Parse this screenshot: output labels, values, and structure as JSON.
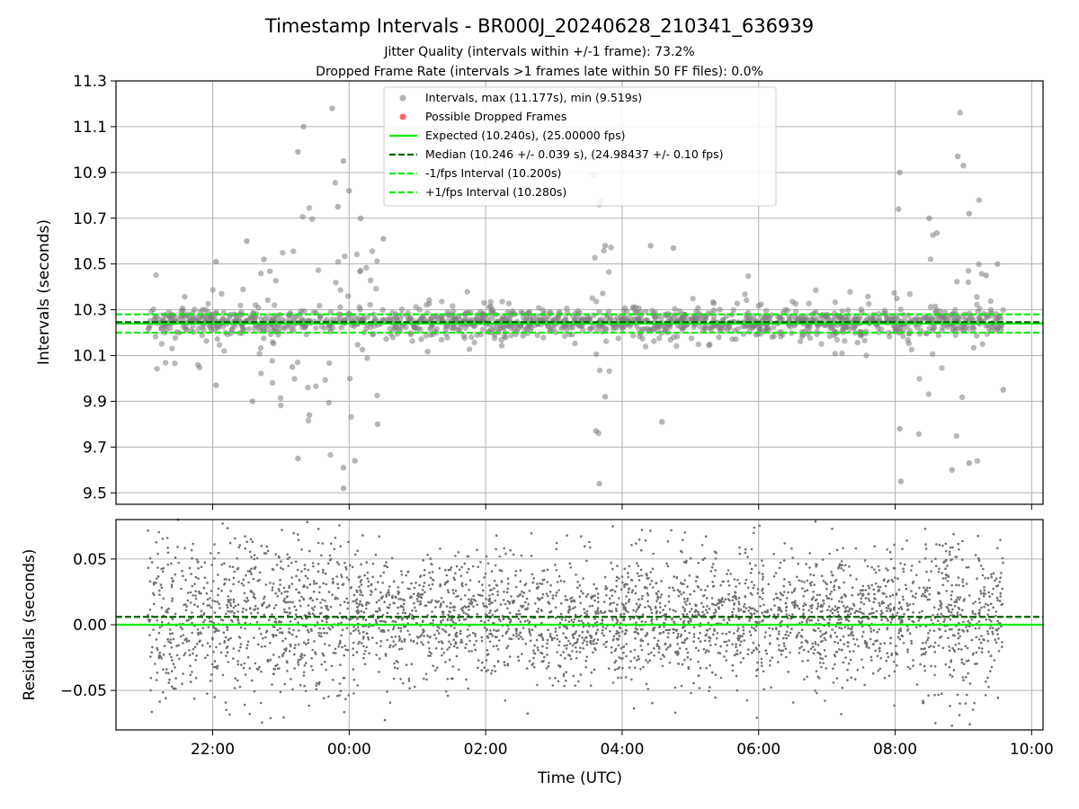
{
  "figure": {
    "title": "Timestamp Intervals - BR000J_20240628_210341_636939",
    "subtitle_1": "Jitter Quality (intervals within +/-1 frame): 73.2%",
    "subtitle_2": "Dropped Frame Rate (intervals >1 frames late within 50 FF files): 0.0%",
    "xlabel": "Time (UTC)"
  },
  "chart_data": [
    {
      "type": "scatter",
      "ylabel": "Intervals (seconds)",
      "xlim": [
        "2024-06-28T20:35",
        "2024-06-29T10:10"
      ],
      "ylim": [
        9.45,
        11.3
      ],
      "yticks": [
        9.5,
        9.7,
        9.9,
        10.1,
        10.3,
        10.5,
        10.7,
        10.9,
        11.1,
        11.3
      ],
      "ytick_labels": [
        "9.5",
        "9.7",
        "9.9",
        "10.1",
        "10.3",
        "10.5",
        "10.7",
        "10.9",
        "11.1",
        "11.3"
      ],
      "xticks": [
        "2024-06-28T22:00",
        "2024-06-29T00:00",
        "2024-06-29T02:00",
        "2024-06-29T04:00",
        "2024-06-29T06:00",
        "2024-06-29T08:00",
        "2024-06-29T10:00"
      ],
      "xtick_labels": [
        "22:00",
        "00:00",
        "02:00",
        "04:00",
        "06:00",
        "08:00",
        "10:00"
      ],
      "grid": true,
      "legend_position": "top-center",
      "legend": [
        {
          "label": "Intervals, max (11.177s), min (9.519s)",
          "kind": "marker",
          "color": "#808080"
        },
        {
          "label": "Possible Dropped Frames",
          "kind": "marker",
          "color": "#ff0000"
        },
        {
          "label": "Expected (10.240s), (25.00000 fps)",
          "kind": "line",
          "color": "#00ee00"
        },
        {
          "label": "Median (10.246 +/- 0.039 s), (24.98437 +/- 0.10 fps)",
          "kind": "dashed",
          "color": "#006400"
        },
        {
          "label": "-1/fps Interval (10.200s)",
          "kind": "dashed",
          "color": "#00ee00"
        },
        {
          "label": "+1/fps Interval (10.280s)",
          "kind": "dashed",
          "color": "#00ee00"
        }
      ],
      "reference_lines": {
        "expected": 10.24,
        "median": 10.246,
        "minus_1fps": 10.2,
        "plus_1fps": 10.28
      },
      "time_range": [
        "2024-06-28T21:03",
        "2024-06-29T09:35"
      ],
      "interval_max": 11.177,
      "interval_min": 9.519,
      "points_sample": [
        [
          "2024-06-28T21:55",
          10.26
        ],
        [
          "2024-06-28T21:58",
          10.24
        ],
        [
          "2024-06-28T22:03",
          10.51
        ],
        [
          "2024-06-28T22:03",
          9.97
        ],
        [
          "2024-06-28T22:30",
          10.6
        ],
        [
          "2024-06-28T22:35",
          9.9
        ],
        [
          "2024-06-28T22:45",
          10.52
        ],
        [
          "2024-06-28T23:10",
          10.05
        ],
        [
          "2024-06-28T23:15",
          9.65
        ],
        [
          "2024-06-28T23:15",
          10.99
        ],
        [
          "2024-06-28T23:20",
          11.1
        ],
        [
          "2024-06-28T23:25",
          9.84
        ],
        [
          "2024-06-28T23:45",
          11.18
        ],
        [
          "2024-06-28T23:50",
          10.75
        ],
        [
          "2024-06-28T23:55",
          10.95
        ],
        [
          "2024-06-28T23:55",
          9.52
        ],
        [
          "2024-06-28T23:55",
          9.61
        ],
        [
          "2024-06-29T00:00",
          10.82
        ],
        [
          "2024-06-29T00:05",
          9.64
        ],
        [
          "2024-06-29T00:10",
          10.7
        ],
        [
          "2024-06-29T00:25",
          9.8
        ],
        [
          "2024-06-29T00:30",
          10.61
        ],
        [
          "2024-06-29T03:35",
          10.89
        ],
        [
          "2024-06-29T03:37",
          9.77
        ],
        [
          "2024-06-29T03:40",
          10.76
        ],
        [
          "2024-06-29T03:40",
          9.54
        ],
        [
          "2024-06-29T03:45",
          10.58
        ],
        [
          "2024-06-29T03:45",
          9.92
        ],
        [
          "2024-06-29T04:25",
          10.58
        ],
        [
          "2024-06-29T04:35",
          9.81
        ],
        [
          "2024-06-29T04:45",
          10.57
        ],
        [
          "2024-06-29T08:04",
          10.9
        ],
        [
          "2024-06-29T08:03",
          10.74
        ],
        [
          "2024-06-29T08:05",
          9.55
        ],
        [
          "2024-06-29T08:04",
          9.78
        ],
        [
          "2024-06-29T08:30",
          10.7
        ],
        [
          "2024-06-29T08:50",
          9.6
        ],
        [
          "2024-06-29T08:55",
          10.97
        ],
        [
          "2024-06-29T09:00",
          10.93
        ],
        [
          "2024-06-29T09:05",
          9.63
        ],
        [
          "2024-06-29T09:05",
          10.72
        ],
        [
          "2024-06-29T09:20",
          10.45
        ],
        [
          "2024-06-29T09:30",
          10.5
        ],
        [
          "2024-06-29T09:35",
          9.95
        ]
      ]
    },
    {
      "type": "scatter",
      "ylabel": "Residuals (seconds)",
      "xlim": [
        "2024-06-28T20:35",
        "2024-06-29T10:10"
      ],
      "ylim": [
        -0.08,
        0.08
      ],
      "yticks": [
        -0.05,
        0.0,
        0.05
      ],
      "ytick_labels": [
        "−0.05",
        "0.00",
        "0.05"
      ],
      "xticks": [
        "2024-06-28T22:00",
        "2024-06-29T00:00",
        "2024-06-29T02:00",
        "2024-06-29T04:00",
        "2024-06-29T06:00",
        "2024-06-29T08:00",
        "2024-06-29T10:00"
      ],
      "xtick_labels": [
        "22:00",
        "00:00",
        "02:00",
        "04:00",
        "06:00",
        "08:00",
        "10:00"
      ],
      "grid": true,
      "reference_lines": {
        "expected": 0.0,
        "median": 0.006
      },
      "time_range": [
        "2024-06-28T21:03",
        "2024-06-29T09:35"
      ]
    }
  ],
  "colors": {
    "points": "#808080",
    "dropped": "#ff0000",
    "expected": "#00ee00",
    "median": "#006400",
    "grid": "#b0b0b0"
  }
}
